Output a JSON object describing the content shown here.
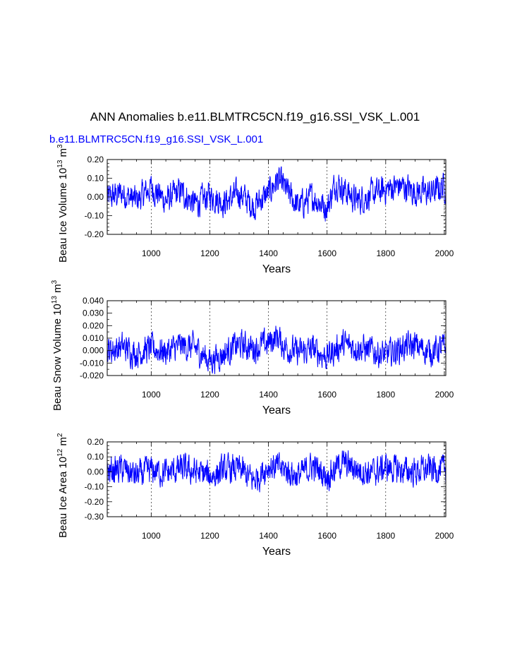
{
  "title": "ANN Anomalies b.e11.BLMTRC5CN.f19_g16.SSI_VSK_L.001",
  "case_label": "b.e11.BLMTRC5CN.f19_g16.SSI_VSK_L.001",
  "colors": {
    "line": "#0000ff",
    "case_label": "#0000ff",
    "axis": "#000000"
  },
  "chart_data": [
    {
      "type": "line",
      "ylabel_text": "Beau Ice Volume 10",
      "ylabel_exp": "13",
      "ylabel_unit": " m",
      "ylabel_unit_exp": "3",
      "xlabel": "Years",
      "xlim": [
        850,
        2005
      ],
      "ylim": [
        -0.2,
        0.2
      ],
      "xticks": [
        1000,
        1200,
        1400,
        1600,
        1800,
        2000
      ],
      "yticks": [
        "-0.20",
        "-0.10",
        "0.00",
        "0.10",
        "0.20"
      ],
      "grid_x": "dashed at major x ticks",
      "series": [
        {
          "x": [
            850,
            900,
            950,
            1000,
            1050,
            1100,
            1150,
            1200,
            1250,
            1300,
            1350,
            1400,
            1430,
            1450,
            1500,
            1550,
            1600,
            1630,
            1650,
            1700,
            1750,
            1800,
            1850,
            1900,
            1950,
            2005
          ],
          "values": [
            -0.01,
            0.02,
            -0.02,
            0.05,
            -0.02,
            0.03,
            -0.04,
            0.01,
            -0.03,
            0.02,
            -0.05,
            0.02,
            0.09,
            0.06,
            -0.05,
            0.0,
            -0.06,
            0.08,
            0.05,
            -0.02,
            0.01,
            0.04,
            0.06,
            0.03,
            0.02,
            0.06
          ]
        }
      ]
    },
    {
      "type": "line",
      "ylabel_text": "Beau Snow Volume 10",
      "ylabel_exp": "13",
      "ylabel_unit": " m",
      "ylabel_unit_exp": "3",
      "xlabel": "Years",
      "xlim": [
        850,
        2005
      ],
      "ylim": [
        -0.02,
        0.04
      ],
      "xticks": [
        1000,
        1200,
        1400,
        1600,
        1800,
        2000
      ],
      "yticks": [
        "-0.020",
        "-0.010",
        "0.000",
        "0.010",
        "0.020",
        "0.030",
        "0.040"
      ],
      "grid_x": "dashed at major x ticks",
      "series": [
        {
          "x": [
            850,
            900,
            950,
            1000,
            1050,
            1100,
            1150,
            1200,
            1250,
            1300,
            1350,
            1400,
            1430,
            1450,
            1500,
            1550,
            1600,
            1650,
            1700,
            1750,
            1800,
            1850,
            1900,
            1950,
            2005
          ],
          "values": [
            0.0,
            0.003,
            -0.002,
            0.002,
            -0.001,
            0.004,
            0.002,
            -0.008,
            -0.002,
            0.005,
            0.002,
            0.006,
            0.012,
            0.004,
            -0.002,
            0.001,
            -0.005,
            0.005,
            0.003,
            0.0,
            -0.004,
            0.002,
            0.004,
            -0.001,
            0.003
          ]
        }
      ]
    },
    {
      "type": "line",
      "ylabel_text": "Beau Ice Area 10",
      "ylabel_exp": "12",
      "ylabel_unit": " m",
      "ylabel_unit_exp": "2",
      "xlabel": "Years",
      "xlim": [
        850,
        2005
      ],
      "ylim": [
        -0.3,
        0.2
      ],
      "xticks": [
        1000,
        1200,
        1400,
        1600,
        1800,
        2000
      ],
      "yticks": [
        "-0.30",
        "-0.20",
        "-0.10",
        "0.00",
        "0.10",
        "0.20"
      ],
      "grid_x": "dashed at major x ticks",
      "series": [
        {
          "x": [
            850,
            900,
            950,
            1000,
            1050,
            1100,
            1150,
            1200,
            1250,
            1300,
            1350,
            1400,
            1450,
            1500,
            1550,
            1600,
            1650,
            1700,
            1750,
            1800,
            1850,
            1900,
            1950,
            2005
          ],
          "values": [
            0.0,
            0.02,
            -0.03,
            0.01,
            -0.01,
            0.02,
            0.0,
            -0.03,
            0.01,
            0.02,
            -0.06,
            0.04,
            0.02,
            -0.03,
            0.04,
            -0.03,
            0.06,
            0.02,
            -0.01,
            0.03,
            0.01,
            0.0,
            0.02,
            0.01
          ]
        }
      ]
    }
  ]
}
